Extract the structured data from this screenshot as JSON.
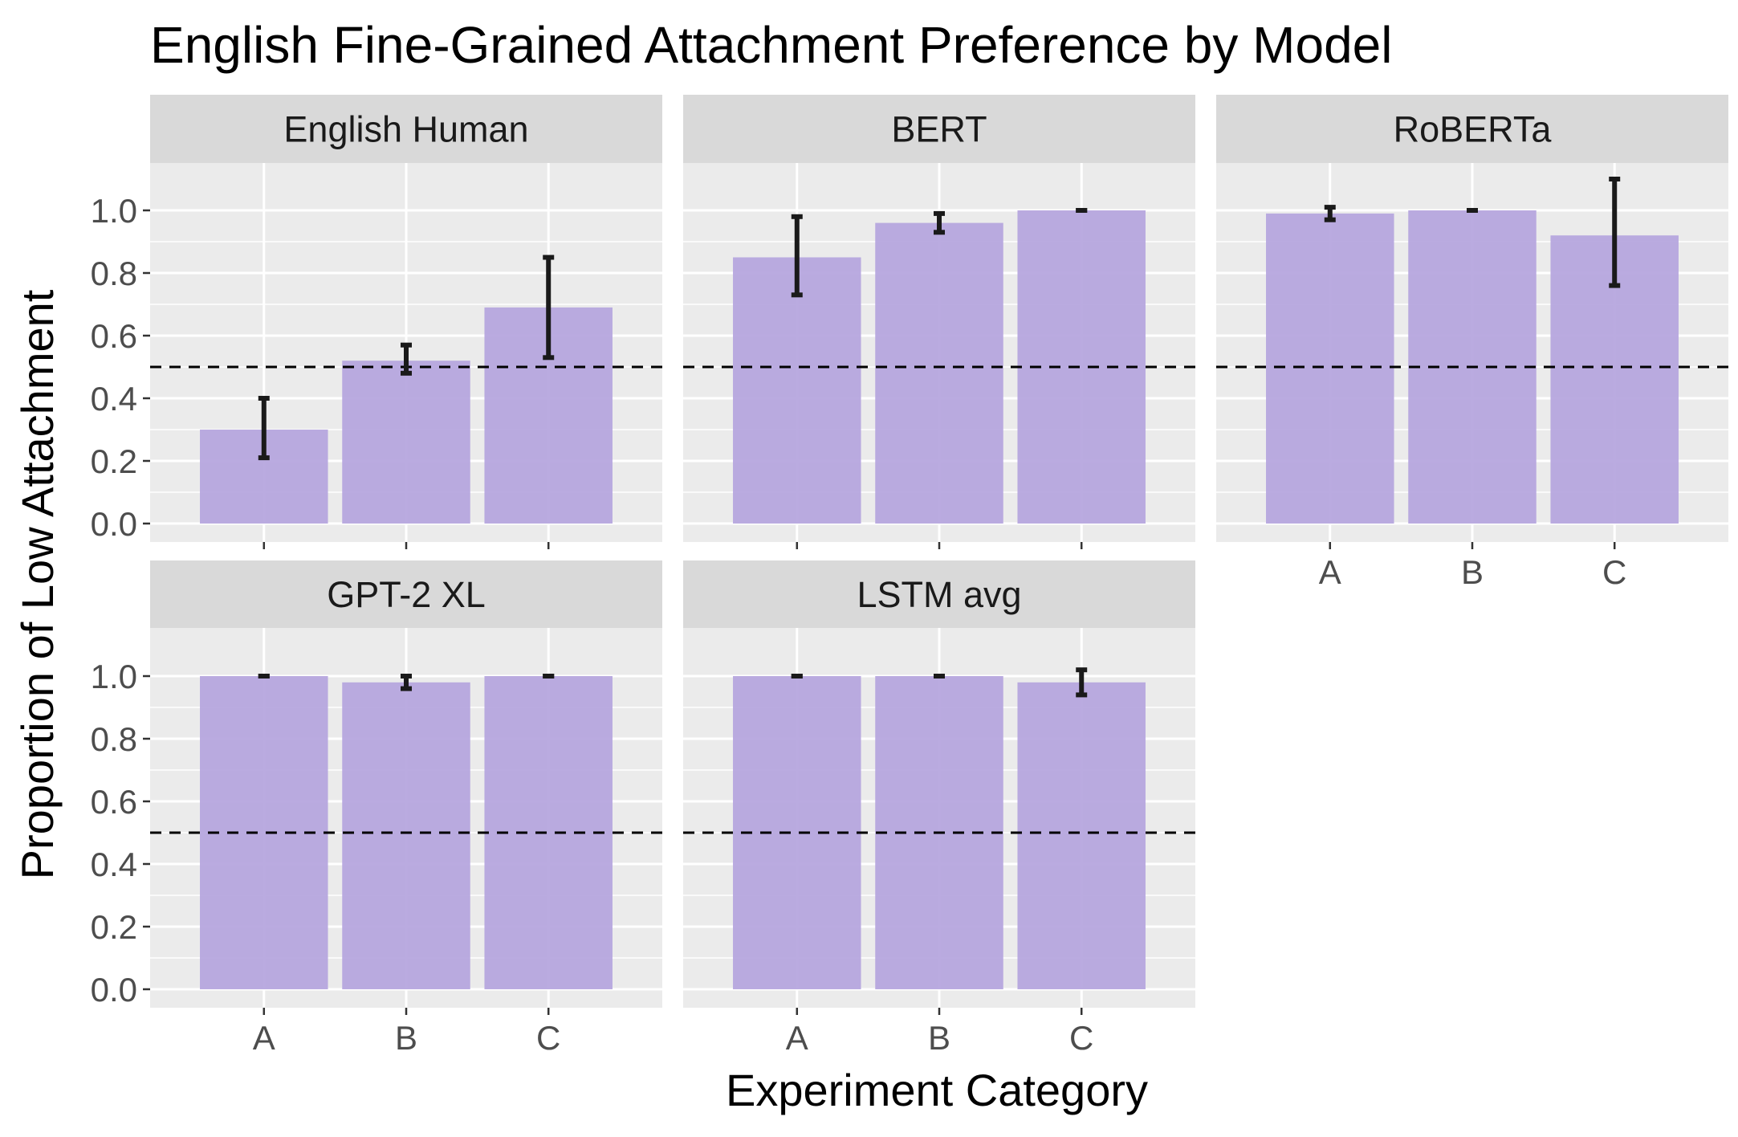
{
  "title": "English Fine-Grained Attachment Preference by Model",
  "chart_data": {
    "type": "bar",
    "title": "English Fine-Grained Attachment Preference by Model",
    "xlabel": "Experiment Category",
    "ylabel": "Proportion of Low Attachment",
    "categories": [
      "A",
      "B",
      "C"
    ],
    "y_ticks": [
      "0.0",
      "0.2",
      "0.4",
      "0.6",
      "0.8",
      "1.0"
    ],
    "ylim": [
      -0.05,
      1.1
    ],
    "reference_line": 0.5,
    "grid": true,
    "bar_color": "#b6a6de",
    "panel_background": "#ebebeb",
    "strip_background": "#d9d9d9",
    "panels": [
      {
        "name": "English Human",
        "values": [
          0.3,
          0.52,
          0.69
        ],
        "errors": [
          [
            0.21,
            0.4
          ],
          [
            0.48,
            0.57
          ],
          [
            0.53,
            0.85
          ]
        ]
      },
      {
        "name": "BERT",
        "values": [
          0.85,
          0.96,
          1.0
        ],
        "errors": [
          [
            0.73,
            0.98
          ],
          [
            0.93,
            0.99
          ],
          [
            1.0,
            1.0
          ]
        ]
      },
      {
        "name": "RoBERTa",
        "values": [
          0.99,
          1.0,
          0.92
        ],
        "errors": [
          [
            0.97,
            1.01
          ],
          [
            1.0,
            1.0
          ],
          [
            0.76,
            1.1
          ]
        ]
      },
      {
        "name": "GPT-2 XL",
        "values": [
          1.0,
          0.98,
          1.0
        ],
        "errors": [
          [
            1.0,
            1.0
          ],
          [
            0.96,
            1.0
          ],
          [
            1.0,
            1.0
          ]
        ]
      },
      {
        "name": "LSTM avg",
        "values": [
          1.0,
          1.0,
          0.98
        ],
        "errors": [
          [
            1.0,
            1.0
          ],
          [
            1.0,
            1.0
          ],
          [
            0.94,
            1.02
          ]
        ]
      }
    ]
  }
}
